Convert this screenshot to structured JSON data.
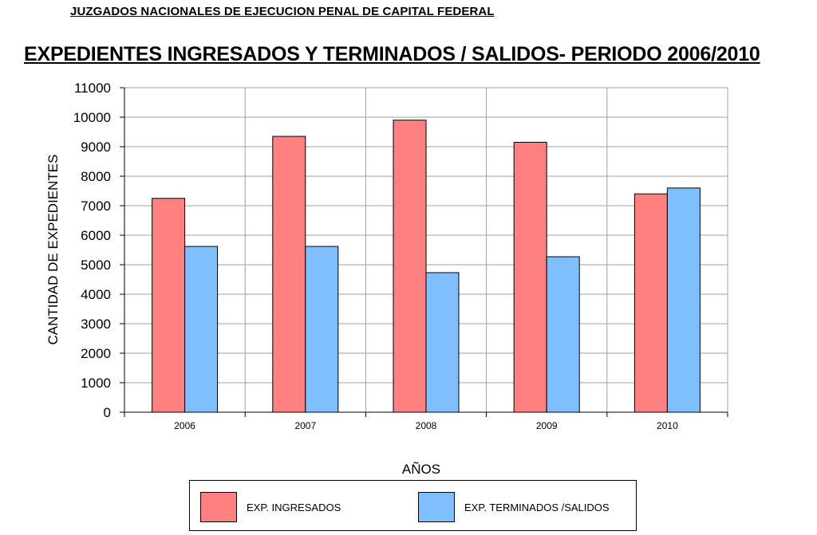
{
  "header": {
    "subtitle": "JUZGADOS NACIONALES DE EJECUCION PENAL DE CAPITAL FEDERAL",
    "title": "EXPEDIENTES INGRESADOS  Y TERMINADOS / SALIDOS- PERIODO 2006/2010"
  },
  "chart_data": {
    "type": "bar",
    "categories": [
      "2006",
      "2007",
      "2008",
      "2009",
      "2010"
    ],
    "series": [
      {
        "name": "EXP. INGRESADOS",
        "values": [
          7250,
          9350,
          9900,
          9150,
          7400
        ],
        "color": "#ff8080"
      },
      {
        "name": "EXP. TERMINADOS /SALIDOS",
        "values": [
          5620,
          5620,
          4730,
          5270,
          7600
        ],
        "color": "#80bfff"
      }
    ],
    "xlabel": "AÑOS",
    "ylabel": "CANTIDAD DE EXPEDIENTES",
    "ylim": [
      0,
      11000
    ],
    "yticks": [
      0,
      1000,
      2000,
      3000,
      4000,
      5000,
      6000,
      7000,
      8000,
      9000,
      10000,
      11000
    ],
    "grid": true,
    "legend_position": "bottom"
  }
}
